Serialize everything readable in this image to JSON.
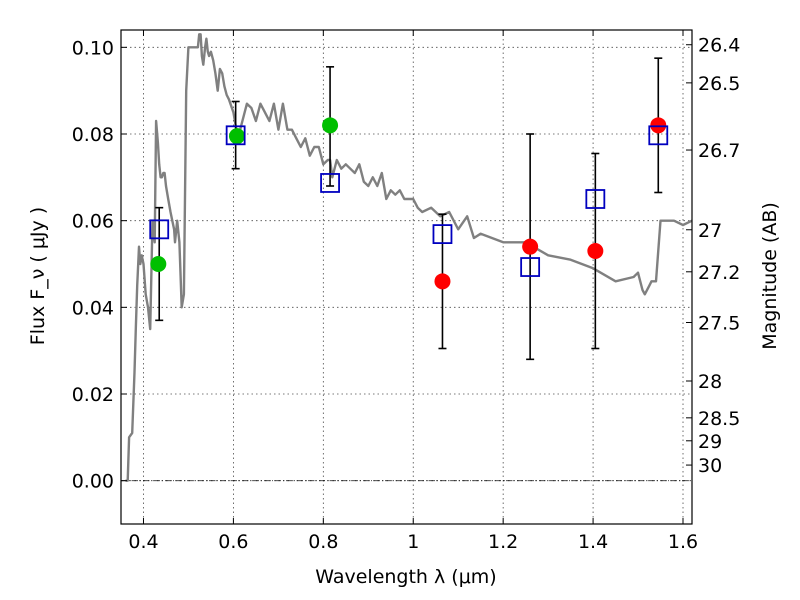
{
  "chart_data": {
    "type": "scatter",
    "title": "",
    "xlabel": "Wavelength  λ (μm)",
    "ylabel": "Flux  F_ν  ( μJy )",
    "y2label": "Magnitude (AB)",
    "xlim": [
      0.35,
      1.62
    ],
    "ylim": [
      -0.01,
      0.104
    ],
    "grid": true,
    "x_ticks": [
      0.4,
      0.6,
      0.8,
      1.0,
      1.2,
      1.4,
      1.6
    ],
    "x_tick_labels": [
      "0.4",
      "0.6",
      "0.8",
      "1",
      "1.2",
      "1.4",
      "1.6"
    ],
    "y_ticks": [
      0.0,
      0.02,
      0.04,
      0.06,
      0.08,
      0.1
    ],
    "y_tick_labels": [
      "0.00",
      "0.02",
      "0.04",
      "0.06",
      "0.08",
      "0.10"
    ],
    "y2_ticks": [
      {
        "label": "26.4",
        "flux": 0.1006
      },
      {
        "label": "26.5",
        "flux": 0.0918
      },
      {
        "label": "26.7",
        "flux": 0.0763
      },
      {
        "label": "27",
        "flux": 0.0579
      },
      {
        "label": "27.2",
        "flux": 0.0482
      },
      {
        "label": "27.5",
        "flux": 0.0365
      },
      {
        "label": "28",
        "flux": 0.023
      },
      {
        "label": "28.5",
        "flux": 0.0145
      },
      {
        "label": "29",
        "flux": 0.0092
      },
      {
        "label": "30",
        "flux": 0.0036
      }
    ],
    "series": [
      {
        "name": "model SED",
        "kind": "line",
        "color": "#808080",
        "x": [
          0.36,
          0.365,
          0.368,
          0.375,
          0.38,
          0.383,
          0.386,
          0.39,
          0.393,
          0.396,
          0.4,
          0.405,
          0.41,
          0.415,
          0.42,
          0.425,
          0.428,
          0.432,
          0.435,
          0.438,
          0.441,
          0.444,
          0.447,
          0.45,
          0.455,
          0.46,
          0.464,
          0.468,
          0.47,
          0.475,
          0.48,
          0.485,
          0.49,
          0.495,
          0.5,
          0.505,
          0.51,
          0.515,
          0.518,
          0.521,
          0.524,
          0.527,
          0.53,
          0.533,
          0.537,
          0.54,
          0.543,
          0.546,
          0.55,
          0.555,
          0.56,
          0.565,
          0.57,
          0.575,
          0.58,
          0.585,
          0.59,
          0.6,
          0.61,
          0.62,
          0.63,
          0.64,
          0.65,
          0.66,
          0.67,
          0.68,
          0.69,
          0.7,
          0.71,
          0.72,
          0.73,
          0.74,
          0.75,
          0.76,
          0.77,
          0.78,
          0.79,
          0.8,
          0.81,
          0.815,
          0.82,
          0.83,
          0.84,
          0.85,
          0.86,
          0.87,
          0.88,
          0.89,
          0.9,
          0.91,
          0.92,
          0.93,
          0.94,
          0.95,
          0.96,
          0.97,
          0.98,
          0.99,
          1.0,
          1.01,
          1.02,
          1.04,
          1.06,
          1.08,
          1.1,
          1.12,
          1.135,
          1.15,
          1.2,
          1.25,
          1.3,
          1.35,
          1.4,
          1.45,
          1.49,
          1.5,
          1.51,
          1.515,
          1.525,
          1.53,
          1.54,
          1.55,
          1.56,
          1.58,
          1.6,
          1.62
        ],
        "y": [
          0.0,
          0.0,
          0.01,
          0.011,
          0.025,
          0.035,
          0.045,
          0.054,
          0.05,
          0.052,
          0.05,
          0.043,
          0.04,
          0.035,
          0.06,
          0.055,
          0.083,
          0.078,
          0.073,
          0.07,
          0.07,
          0.071,
          0.071,
          0.068,
          0.065,
          0.062,
          0.06,
          0.058,
          0.055,
          0.06,
          0.055,
          0.04,
          0.043,
          0.09,
          0.1,
          0.1,
          0.1,
          0.1,
          0.1,
          0.1,
          0.103,
          0.103,
          0.098,
          0.096,
          0.1,
          0.102,
          0.099,
          0.098,
          0.099,
          0.097,
          0.094,
          0.09,
          0.095,
          0.094,
          0.091,
          0.089,
          0.088,
          0.085,
          0.079,
          0.083,
          0.087,
          0.086,
          0.083,
          0.087,
          0.085,
          0.083,
          0.087,
          0.081,
          0.087,
          0.081,
          0.081,
          0.079,
          0.077,
          0.079,
          0.075,
          0.077,
          0.077,
          0.073,
          0.074,
          0.074,
          0.07,
          0.074,
          0.072,
          0.073,
          0.072,
          0.071,
          0.073,
          0.069,
          0.068,
          0.07,
          0.068,
          0.071,
          0.065,
          0.067,
          0.066,
          0.067,
          0.065,
          0.065,
          0.065,
          0.063,
          0.062,
          0.063,
          0.061,
          0.062,
          0.058,
          0.061,
          0.056,
          0.057,
          0.055,
          0.055,
          0.052,
          0.051,
          0.049,
          0.046,
          0.047,
          0.048,
          0.044,
          0.043,
          0.045,
          0.046,
          0.046,
          0.06,
          0.06,
          0.06,
          0.059,
          0.06
        ]
      },
      {
        "name": "green points",
        "kind": "marker",
        "color": "#00bf00",
        "x": [
          0.433,
          0.608,
          0.815
        ],
        "y": [
          0.05,
          0.0795,
          0.082
        ]
      },
      {
        "name": "red points",
        "kind": "marker",
        "color": "#ff0000",
        "x": [
          1.065,
          1.26,
          1.405,
          1.545
        ],
        "y": [
          0.046,
          0.054,
          0.053,
          0.082
        ]
      },
      {
        "name": "blue squares with error bars",
        "kind": "square",
        "color": "#0000bf",
        "x": [
          0.435,
          0.605,
          0.815,
          1.065,
          1.26,
          1.405,
          1.545
        ],
        "y": [
          0.058,
          0.0797,
          0.0687,
          0.0569,
          0.0493,
          0.065,
          0.0797
        ],
        "err_low": [
          0.037,
          0.072,
          0.068,
          0.0305,
          0.028,
          0.0305,
          0.0665
        ],
        "err_high": [
          0.063,
          0.0875,
          0.0955,
          0.0615,
          0.08,
          0.0755,
          0.0975
        ]
      }
    ]
  }
}
